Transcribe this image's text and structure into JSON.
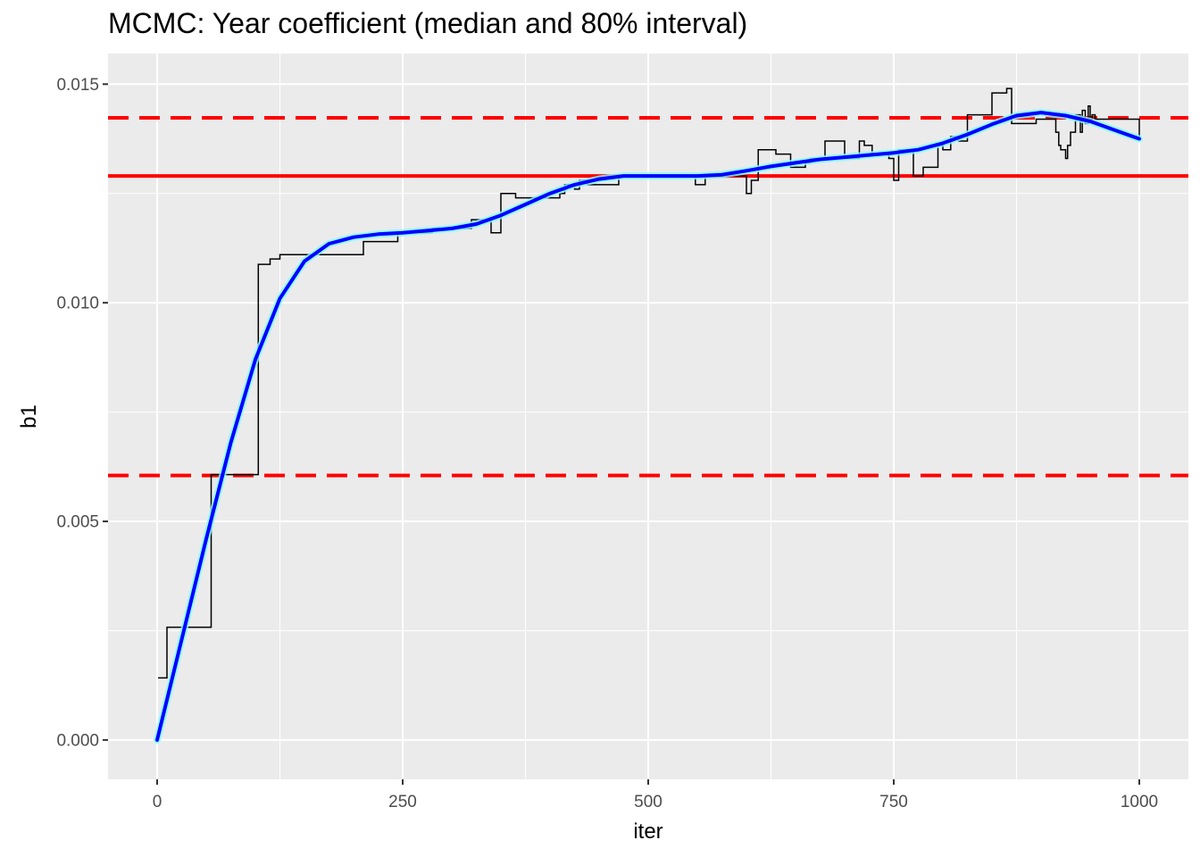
{
  "chart_data": {
    "type": "line",
    "title": "MCMC: Year coefficient (median and 80% interval)",
    "xlabel": "iter",
    "ylabel": "b1",
    "xlim": [
      -50,
      1050
    ],
    "ylim": [
      -0.0009,
      0.0157
    ],
    "x_ticks": [
      0,
      250,
      500,
      750,
      1000
    ],
    "x_tick_labels": [
      "0",
      "250",
      "500",
      "750",
      "1000"
    ],
    "y_ticks": [
      0.0,
      0.005,
      0.01,
      0.015
    ],
    "y_tick_labels": [
      "0.000",
      "0.005",
      "0.010",
      "0.015"
    ],
    "grid": true,
    "background": "#ebebeb",
    "hlines": [
      {
        "name": "median",
        "value": 0.0129,
        "style": "solid",
        "color": "#ff0000"
      },
      {
        "name": "lower-80",
        "value": 0.00605,
        "style": "dashed",
        "color": "#ff0000"
      },
      {
        "name": "upper-80",
        "value": 0.01423,
        "style": "dashed",
        "color": "#ff0000"
      }
    ],
    "series": [
      {
        "kind": "trace",
        "color": "#000000",
        "style": "step",
        "x": [
          1,
          10,
          55,
          60,
          90,
          103,
          115,
          125,
          150,
          210,
          245,
          280,
          320,
          340,
          350,
          365,
          372,
          410,
          415,
          425,
          430,
          438,
          470,
          500,
          520,
          545,
          548,
          558,
          600,
          605,
          612,
          630,
          645,
          660,
          665,
          680,
          700,
          715,
          720,
          728,
          745,
          750,
          755,
          770,
          780,
          795,
          800,
          808,
          816,
          825,
          850,
          865,
          870,
          880,
          895,
          905,
          915,
          918,
          920,
          925,
          927,
          930,
          935,
          940,
          942,
          945,
          948,
          950,
          952,
          955,
          975,
          980,
          985,
          1000
        ],
        "y": [
          0.00142,
          0.00258,
          0.00607,
          0.00607,
          0.00607,
          0.01088,
          0.011,
          0.0111,
          0.0111,
          0.0114,
          0.0116,
          0.0117,
          0.0119,
          0.0116,
          0.0125,
          0.0124,
          0.0124,
          0.0125,
          0.0127,
          0.0126,
          0.0128,
          0.0127,
          0.0129,
          0.0129,
          0.0129,
          0.0129,
          0.0127,
          0.0129,
          0.0125,
          0.0128,
          0.0135,
          0.0134,
          0.0131,
          0.0132,
          0.0133,
          0.0137,
          0.0133,
          0.0137,
          0.0136,
          0.0134,
          0.0133,
          0.0128,
          0.0135,
          0.0129,
          0.0131,
          0.0136,
          0.0135,
          0.0138,
          0.0137,
          0.0143,
          0.0148,
          0.0149,
          0.0141,
          0.0141,
          0.0142,
          0.0142,
          0.0139,
          0.0136,
          0.0135,
          0.0133,
          0.0136,
          0.0139,
          0.0143,
          0.0139,
          0.0144,
          0.0141,
          0.0145,
          0.0142,
          0.0143,
          0.0142,
          0.0142,
          0.0142,
          0.0142,
          0.0138
        ]
      },
      {
        "kind": "smooth",
        "color": "#0000ff",
        "band_color": "#7fffff",
        "x": [
          0,
          25,
          50,
          75,
          100,
          125,
          150,
          175,
          200,
          225,
          250,
          275,
          300,
          325,
          350,
          375,
          400,
          425,
          450,
          475,
          500,
          525,
          550,
          575,
          600,
          625,
          650,
          675,
          700,
          725,
          750,
          775,
          800,
          825,
          850,
          875,
          900,
          925,
          950,
          975,
          1000
        ],
        "y": [
          0.0,
          0.0023,
          0.0046,
          0.0068,
          0.0087,
          0.0101,
          0.01095,
          0.01135,
          0.0115,
          0.01157,
          0.0116,
          0.01165,
          0.0117,
          0.0118,
          0.012,
          0.01225,
          0.0125,
          0.0127,
          0.01283,
          0.0129,
          0.0129,
          0.0129,
          0.0129,
          0.01293,
          0.01302,
          0.01312,
          0.0132,
          0.01328,
          0.01333,
          0.01338,
          0.01343,
          0.0135,
          0.01365,
          0.01385,
          0.01408,
          0.01428,
          0.01435,
          0.01428,
          0.01415,
          0.01395,
          0.01375
        ]
      }
    ]
  }
}
